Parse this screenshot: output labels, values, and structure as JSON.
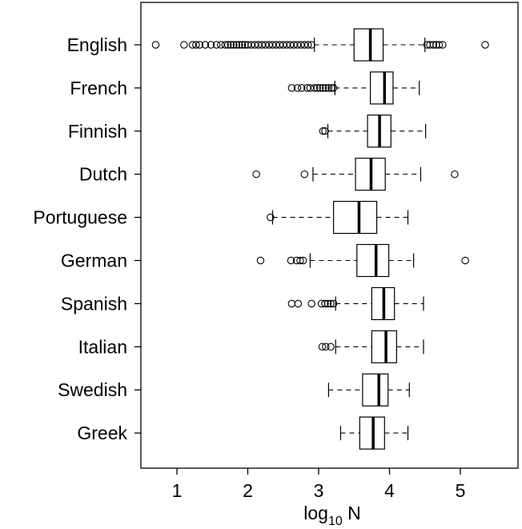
{
  "chart_data": {
    "type": "boxplot",
    "orientation": "horizontal",
    "title": "",
    "xlabel": "log",
    "xlabel_subscript": "10",
    "xlabel_suffix": " N",
    "ylabel": "",
    "xlim": [
      0.5,
      5.85
    ],
    "xticks": [
      1,
      2,
      3,
      4,
      5
    ],
    "xtick_labels": [
      "1",
      "2",
      "3",
      "4",
      "5"
    ],
    "grid": false,
    "legend": "none",
    "colors": {
      "stroke": "#000000",
      "fill": "#ffffff",
      "background": "#ffffff"
    },
    "categories": [
      "English",
      "French",
      "Finnish",
      "Dutch",
      "Portuguese",
      "German",
      "Spanish",
      "Italian",
      "Swedish",
      "Greek"
    ],
    "boxes": [
      {
        "name": "English",
        "whisker_low": 2.94,
        "q1": 3.5,
        "median": 3.73,
        "q3": 3.91,
        "whisker_high": 4.5,
        "outliers": [
          0.7,
          1.1,
          1.22,
          1.27,
          1.32,
          1.4,
          1.48,
          1.56,
          1.62,
          1.68,
          1.72,
          1.76,
          1.8,
          1.84,
          1.88,
          1.92,
          1.96,
          2.0,
          2.05,
          2.1,
          2.15,
          2.2,
          2.25,
          2.3,
          2.35,
          2.4,
          2.45,
          2.5,
          2.55,
          2.6,
          2.65,
          2.7,
          2.75,
          2.8,
          2.85,
          2.9,
          4.53,
          4.57,
          4.62,
          4.66,
          4.7,
          4.75,
          5.35
        ]
      },
      {
        "name": "French",
        "whisker_low": 3.23,
        "q1": 3.73,
        "median": 3.93,
        "q3": 4.05,
        "whisker_high": 4.42,
        "outliers": [
          2.62,
          2.7,
          2.76,
          2.84,
          2.88,
          2.94,
          2.98,
          3.02,
          3.06,
          3.1,
          3.14,
          3.18,
          3.21
        ]
      },
      {
        "name": "Finnish",
        "whisker_low": 3.13,
        "q1": 3.69,
        "median": 3.86,
        "q3": 4.02,
        "whisker_high": 4.51,
        "outliers": [
          3.06,
          3.09
        ]
      },
      {
        "name": "Dutch",
        "whisker_low": 2.92,
        "q1": 3.52,
        "median": 3.74,
        "q3": 3.94,
        "whisker_high": 4.44,
        "outliers": [
          2.12,
          2.8,
          4.92
        ]
      },
      {
        "name": "Portuguese",
        "whisker_low": 2.35,
        "q1": 3.21,
        "median": 3.57,
        "q3": 3.82,
        "whisker_high": 4.26,
        "outliers": [
          2.32
        ]
      },
      {
        "name": "German",
        "whisker_low": 2.88,
        "q1": 3.54,
        "median": 3.81,
        "q3": 3.99,
        "whisker_high": 4.34,
        "outliers": [
          2.18,
          2.61,
          2.69,
          2.74,
          2.78,
          5.07
        ]
      },
      {
        "name": "Spanish",
        "whisker_low": 3.24,
        "q1": 3.75,
        "median": 3.92,
        "q3": 4.07,
        "whisker_high": 4.48,
        "outliers": [
          2.62,
          2.71,
          2.9,
          3.04,
          3.09,
          3.13,
          3.17,
          3.21
        ]
      },
      {
        "name": "Italian",
        "whisker_low": 3.24,
        "q1": 3.75,
        "median": 3.95,
        "q3": 4.1,
        "whisker_high": 4.48,
        "outliers": [
          3.05,
          3.1,
          3.17
        ]
      },
      {
        "name": "Swedish",
        "whisker_low": 3.14,
        "q1": 3.62,
        "median": 3.85,
        "q3": 3.98,
        "whisker_high": 4.28,
        "outliers": []
      },
      {
        "name": "Greek",
        "whisker_low": 3.31,
        "q1": 3.58,
        "median": 3.77,
        "q3": 3.93,
        "whisker_high": 4.26,
        "outliers": []
      }
    ]
  }
}
